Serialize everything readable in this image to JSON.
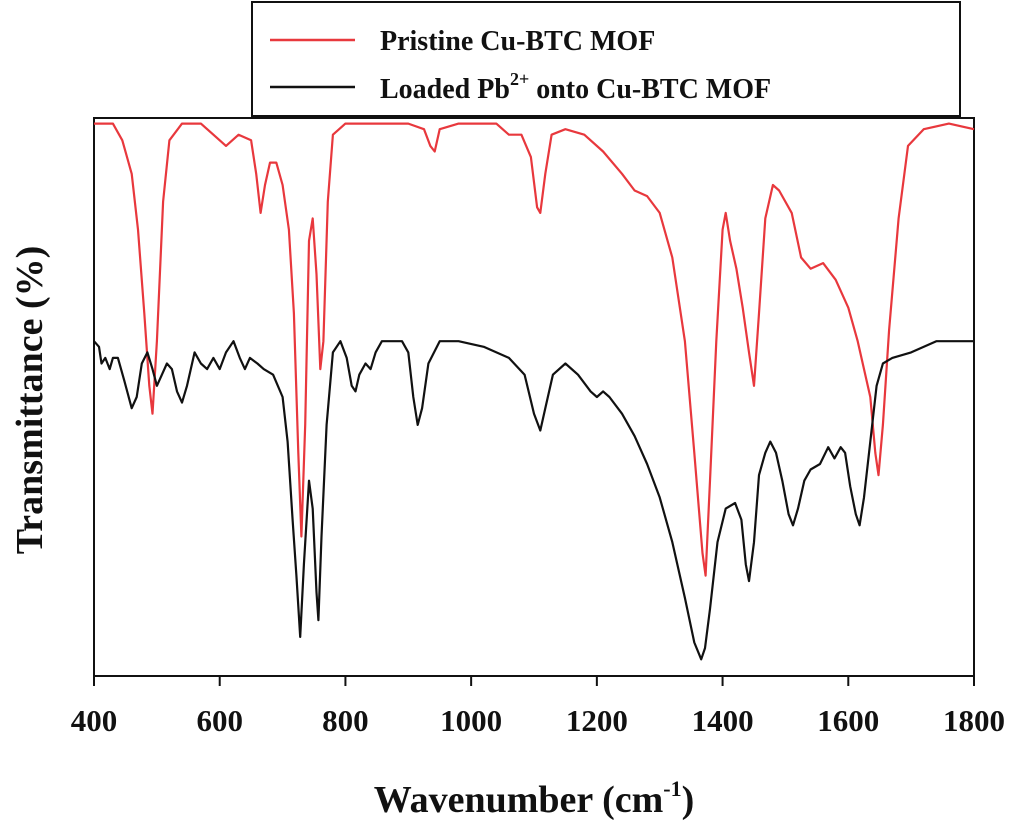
{
  "chart_data": {
    "type": "line",
    "xlabel": "Wavenumber (cm",
    "xlabel_sup": "-1",
    "xlabel_close": ")",
    "ylabel": "Transmittance (%)",
    "xlim": [
      400,
      1800
    ],
    "ylim": [
      0,
      100
    ],
    "x_ticks": [
      400,
      600,
      800,
      1000,
      1200,
      1400,
      1600,
      1800
    ],
    "y_ticks_shown": false,
    "grid": false,
    "legend": {
      "placement": "top-center",
      "entries": [
        {
          "prefix": "Pristine Cu-BTC MOF",
          "sup": "",
          "suffix": ""
        },
        {
          "prefix": "Loaded Pb",
          "sup": "2+",
          "suffix": " onto Cu-BTC MOF"
        }
      ]
    },
    "series": [
      {
        "name": "Pristine Cu-BTC MOF",
        "color": "#e8383d",
        "points": [
          [
            400,
            99
          ],
          [
            430,
            99
          ],
          [
            445,
            96
          ],
          [
            460,
            90
          ],
          [
            470,
            80
          ],
          [
            480,
            65
          ],
          [
            488,
            52
          ],
          [
            493,
            47
          ],
          [
            500,
            60
          ],
          [
            510,
            85
          ],
          [
            520,
            96
          ],
          [
            540,
            99
          ],
          [
            570,
            99
          ],
          [
            590,
            97
          ],
          [
            610,
            95
          ],
          [
            630,
            97
          ],
          [
            650,
            96
          ],
          [
            658,
            90
          ],
          [
            665,
            83
          ],
          [
            672,
            88
          ],
          [
            680,
            92
          ],
          [
            690,
            92
          ],
          [
            700,
            88
          ],
          [
            710,
            80
          ],
          [
            718,
            65
          ],
          [
            725,
            40
          ],
          [
            730,
            25
          ],
          [
            736,
            45
          ],
          [
            742,
            78
          ],
          [
            748,
            82
          ],
          [
            754,
            72
          ],
          [
            760,
            55
          ],
          [
            765,
            60
          ],
          [
            772,
            85
          ],
          [
            780,
            97
          ],
          [
            800,
            99
          ],
          [
            850,
            99
          ],
          [
            900,
            99
          ],
          [
            925,
            98
          ],
          [
            935,
            95
          ],
          [
            942,
            94
          ],
          [
            950,
            98
          ],
          [
            980,
            99
          ],
          [
            1040,
            99
          ],
          [
            1060,
            97
          ],
          [
            1080,
            97
          ],
          [
            1095,
            93
          ],
          [
            1105,
            84
          ],
          [
            1110,
            83
          ],
          [
            1118,
            90
          ],
          [
            1128,
            97
          ],
          [
            1150,
            98
          ],
          [
            1180,
            97
          ],
          [
            1210,
            94
          ],
          [
            1240,
            90
          ],
          [
            1260,
            87
          ],
          [
            1280,
            86
          ],
          [
            1300,
            83
          ],
          [
            1320,
            75
          ],
          [
            1340,
            60
          ],
          [
            1355,
            40
          ],
          [
            1368,
            22
          ],
          [
            1373,
            18
          ],
          [
            1380,
            35
          ],
          [
            1390,
            60
          ],
          [
            1400,
            80
          ],
          [
            1405,
            83
          ],
          [
            1412,
            78
          ],
          [
            1422,
            73
          ],
          [
            1432,
            66
          ],
          [
            1442,
            58
          ],
          [
            1450,
            52
          ],
          [
            1458,
            65
          ],
          [
            1468,
            82
          ],
          [
            1480,
            88
          ],
          [
            1490,
            87
          ],
          [
            1510,
            83
          ],
          [
            1525,
            75
          ],
          [
            1540,
            73
          ],
          [
            1560,
            74
          ],
          [
            1580,
            71
          ],
          [
            1600,
            66
          ],
          [
            1615,
            60
          ],
          [
            1625,
            55
          ],
          [
            1635,
            50
          ],
          [
            1643,
            40
          ],
          [
            1648,
            36
          ],
          [
            1655,
            45
          ],
          [
            1665,
            62
          ],
          [
            1680,
            82
          ],
          [
            1695,
            95
          ],
          [
            1720,
            98
          ],
          [
            1760,
            99
          ],
          [
            1800,
            98
          ]
        ]
      },
      {
        "name": "Loaded Pb2+ onto Cu-BTC MOF",
        "color": "#111111",
        "points": [
          [
            400,
            60
          ],
          [
            408,
            59
          ],
          [
            412,
            56
          ],
          [
            418,
            57
          ],
          [
            425,
            55
          ],
          [
            430,
            57
          ],
          [
            438,
            57
          ],
          [
            448,
            53
          ],
          [
            460,
            48
          ],
          [
            468,
            50
          ],
          [
            476,
            56
          ],
          [
            485,
            58
          ],
          [
            493,
            55
          ],
          [
            500,
            52
          ],
          [
            508,
            54
          ],
          [
            516,
            56
          ],
          [
            524,
            55
          ],
          [
            532,
            51
          ],
          [
            540,
            49
          ],
          [
            548,
            52
          ],
          [
            560,
            58
          ],
          [
            570,
            56
          ],
          [
            580,
            55
          ],
          [
            590,
            57
          ],
          [
            600,
            55
          ],
          [
            610,
            58
          ],
          [
            622,
            60
          ],
          [
            632,
            57
          ],
          [
            640,
            55
          ],
          [
            648,
            57
          ],
          [
            660,
            56
          ],
          [
            670,
            55
          ],
          [
            685,
            54
          ],
          [
            700,
            50
          ],
          [
            708,
            42
          ],
          [
            716,
            28
          ],
          [
            722,
            18
          ],
          [
            728,
            7
          ],
          [
            734,
            20
          ],
          [
            742,
            35
          ],
          [
            748,
            30
          ],
          [
            754,
            15
          ],
          [
            757,
            10
          ],
          [
            762,
            25
          ],
          [
            770,
            45
          ],
          [
            780,
            58
          ],
          [
            792,
            60
          ],
          [
            802,
            57
          ],
          [
            810,
            52
          ],
          [
            816,
            51
          ],
          [
            822,
            54
          ],
          [
            832,
            56
          ],
          [
            840,
            55
          ],
          [
            848,
            58
          ],
          [
            858,
            60
          ],
          [
            870,
            60
          ],
          [
            880,
            60
          ],
          [
            890,
            60
          ],
          [
            900,
            58
          ],
          [
            908,
            50
          ],
          [
            915,
            45
          ],
          [
            922,
            48
          ],
          [
            932,
            56
          ],
          [
            950,
            60
          ],
          [
            980,
            60
          ],
          [
            1020,
            59
          ],
          [
            1060,
            57
          ],
          [
            1085,
            54
          ],
          [
            1100,
            47
          ],
          [
            1110,
            44
          ],
          [
            1118,
            48
          ],
          [
            1130,
            54
          ],
          [
            1150,
            56
          ],
          [
            1170,
            54
          ],
          [
            1190,
            51
          ],
          [
            1200,
            50
          ],
          [
            1210,
            51
          ],
          [
            1220,
            50
          ],
          [
            1240,
            47
          ],
          [
            1260,
            43
          ],
          [
            1280,
            38
          ],
          [
            1300,
            32
          ],
          [
            1320,
            24
          ],
          [
            1340,
            14
          ],
          [
            1355,
            6
          ],
          [
            1366,
            3
          ],
          [
            1372,
            5
          ],
          [
            1380,
            12
          ],
          [
            1392,
            24
          ],
          [
            1405,
            30
          ],
          [
            1420,
            31
          ],
          [
            1430,
            28
          ],
          [
            1437,
            20
          ],
          [
            1442,
            17
          ],
          [
            1450,
            24
          ],
          [
            1458,
            36
          ],
          [
            1468,
            40
          ],
          [
            1476,
            42
          ],
          [
            1485,
            40
          ],
          [
            1495,
            35
          ],
          [
            1505,
            29
          ],
          [
            1512,
            27
          ],
          [
            1520,
            30
          ],
          [
            1530,
            35
          ],
          [
            1540,
            37
          ],
          [
            1555,
            38
          ],
          [
            1568,
            41
          ],
          [
            1578,
            39
          ],
          [
            1588,
            41
          ],
          [
            1595,
            40
          ],
          [
            1603,
            34
          ],
          [
            1612,
            29
          ],
          [
            1618,
            27
          ],
          [
            1625,
            32
          ],
          [
            1635,
            42
          ],
          [
            1645,
            52
          ],
          [
            1655,
            56
          ],
          [
            1670,
            57
          ],
          [
            1700,
            58
          ],
          [
            1740,
            60
          ],
          [
            1780,
            60
          ],
          [
            1800,
            60
          ]
        ]
      }
    ]
  }
}
